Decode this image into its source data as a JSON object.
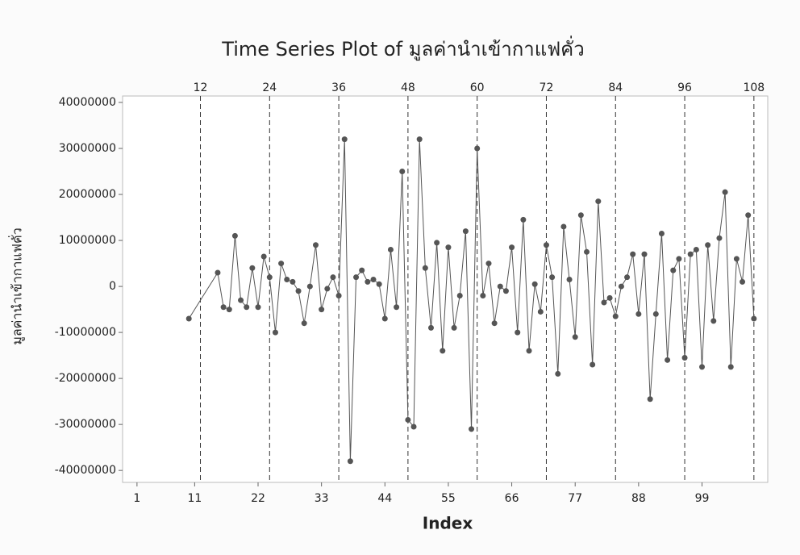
{
  "chart_data": {
    "type": "line",
    "title": "Time Series Plot of มูลค่านำเข้ากาแฟคั่ว",
    "xlabel": "Index",
    "ylabel": "มูลค่านำเข้ากาแฟคั่ว",
    "x": [
      10,
      15,
      16,
      17,
      18,
      19,
      20,
      21,
      22,
      23,
      24,
      25,
      26,
      27,
      28,
      29,
      30,
      31,
      32,
      33,
      34,
      35,
      36,
      37,
      38,
      39,
      40,
      41,
      42,
      43,
      44,
      45,
      46,
      47,
      48,
      49,
      50,
      51,
      52,
      53,
      54,
      55,
      56,
      57,
      58,
      59,
      60,
      61,
      62,
      63,
      64,
      65,
      66,
      67,
      68,
      69,
      70,
      71,
      72,
      73,
      74,
      75,
      76,
      77,
      78,
      79,
      80,
      81,
      82,
      83,
      84,
      85,
      86,
      87,
      88,
      89,
      90,
      91,
      92,
      93,
      94,
      95,
      96,
      97,
      98,
      99,
      100,
      101,
      102,
      103,
      104,
      105,
      106,
      107,
      108
    ],
    "series": [
      {
        "name": "มูลค่านำเข้ากาแฟคั่ว",
        "color": "#555555",
        "values": [
          -7000000,
          3000000,
          -4500000,
          -5000000,
          11000000,
          -3000000,
          -4500000,
          4000000,
          -4500000,
          6500000,
          2000000,
          -10000000,
          5000000,
          1500000,
          1000000,
          -1000000,
          -8000000,
          0,
          9000000,
          -5000000,
          -500000,
          2000000,
          -2000000,
          32000000,
          -38000000,
          2000000,
          3500000,
          1000000,
          1500000,
          500000,
          -7000000,
          8000000,
          -4500000,
          25000000,
          -29000000,
          -30500000,
          32000000,
          4000000,
          -9000000,
          9500000,
          -14000000,
          8500000,
          -9000000,
          -2000000,
          12000000,
          -31000000,
          30000000,
          -2000000,
          5000000,
          -8000000,
          0,
          -1000000,
          8500000,
          -10000000,
          14500000,
          -14000000,
          500000,
          -5500000,
          9000000,
          2000000,
          -19000000,
          13000000,
          1500000,
          -11000000,
          15500000,
          7500000,
          -17000000,
          18500000,
          -3500000,
          -2500000,
          -6500000,
          0,
          2000000,
          7000000,
          -6000000,
          7000000,
          -24500000,
          -6000000,
          11500000,
          -16000000,
          3500000,
          6000000,
          -15500000,
          7000000,
          8000000,
          -17500000,
          9000000,
          -7500000,
          10500000,
          20500000,
          -17500000,
          6000000,
          1000000,
          15500000,
          -7000000
        ]
      }
    ],
    "xlim": [
      -1.5,
      110.4
    ],
    "ylim": [
      -42600000,
      41400000
    ],
    "xticks": [
      1,
      11,
      22,
      33,
      44,
      55,
      66,
      77,
      88,
      99
    ],
    "x2ticks": [
      12,
      24,
      36,
      48,
      60,
      72,
      84,
      96,
      108
    ],
    "yticks": [
      -40000000,
      -30000000,
      -20000000,
      -10000000,
      0,
      10000000,
      20000000,
      30000000,
      40000000
    ],
    "vlines": "dashed"
  }
}
